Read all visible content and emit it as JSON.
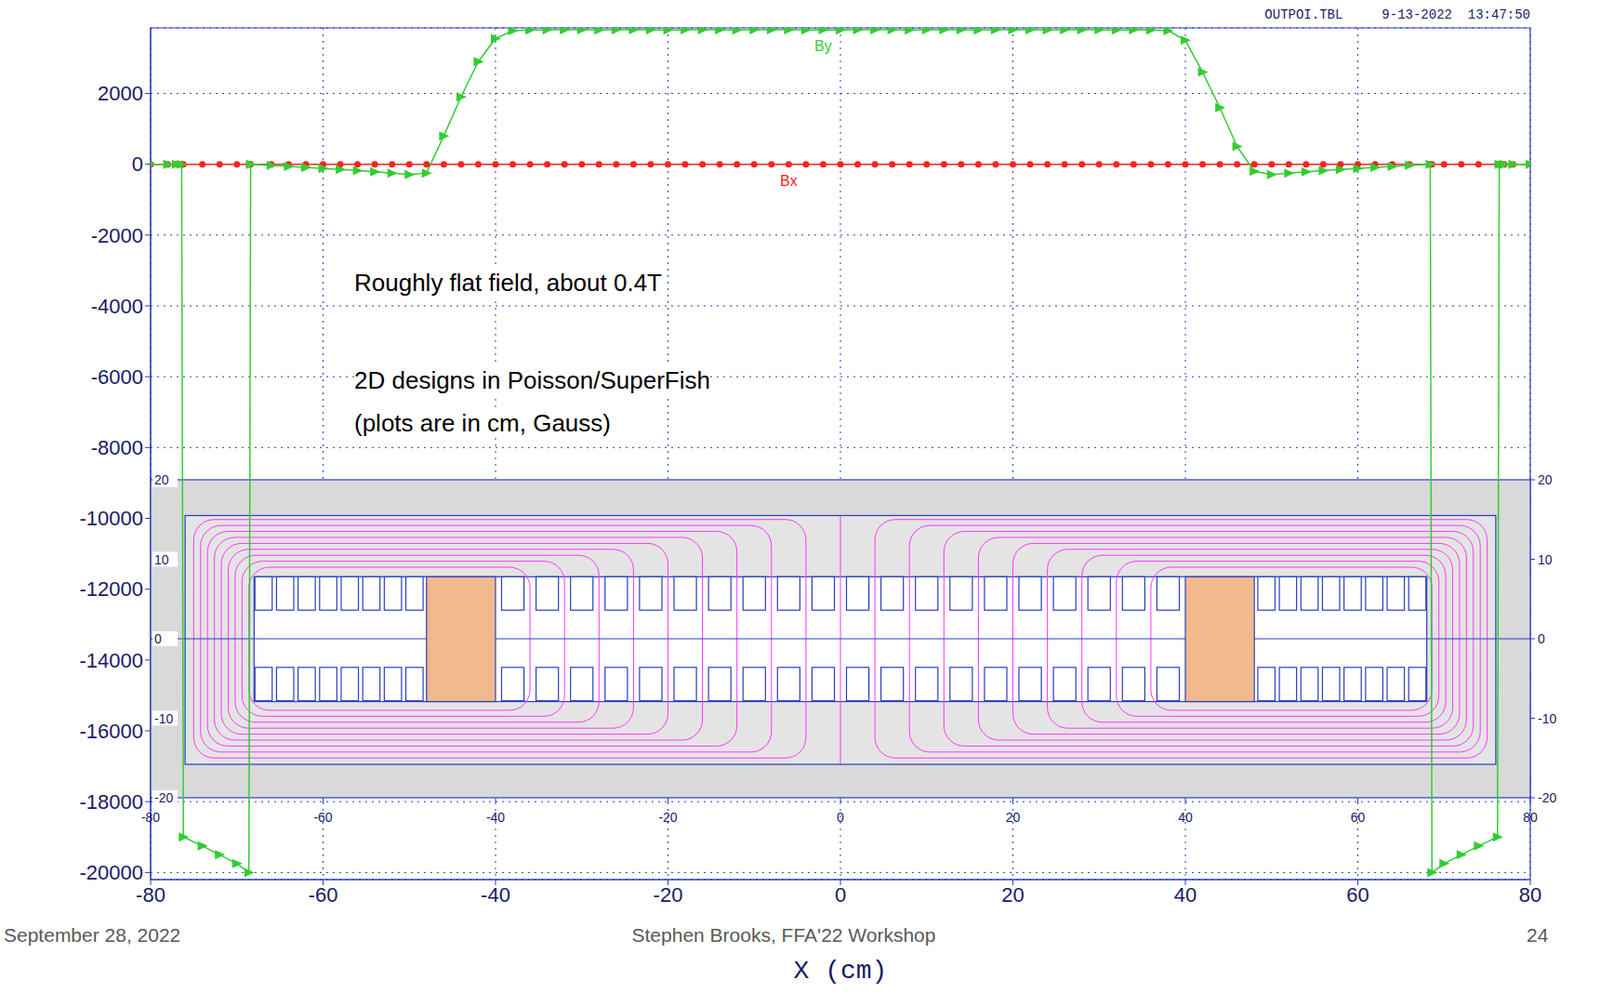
{
  "chart_data": [
    {
      "type": "line",
      "subtitle": "OUTPOI.TBL     9-13-2022  13:47:50",
      "x_label": "X (cm)",
      "annotations": [
        "Roughly flat field, about 0.4T",
        "2D designs in Poisson/SuperFish",
        "(plots are in cm, Gauss)"
      ],
      "x": [
        -80,
        -78,
        -77,
        -76.4,
        -76.2,
        -74,
        -72,
        -70,
        -68.6,
        -68.4,
        -66,
        -64,
        -62,
        -60,
        -58,
        -56,
        -54,
        -52,
        -50,
        -48,
        -46,
        -44,
        -42,
        -40,
        -38,
        -36,
        -34,
        -32,
        -30,
        -28,
        -26,
        -24,
        -22,
        -20,
        -18,
        -16,
        -14,
        -12,
        -10,
        -8,
        -6,
        -4,
        -2,
        0,
        2,
        4,
        6,
        8,
        10,
        12,
        14,
        16,
        18,
        20,
        22,
        24,
        26,
        28,
        30,
        32,
        34,
        36,
        38,
        40,
        42,
        44,
        46,
        48,
        50,
        52,
        54,
        56,
        58,
        60,
        62,
        64,
        66,
        68.4,
        68.6,
        70,
        72,
        74,
        76.2,
        76.4,
        77,
        78,
        80
      ],
      "series": [
        {
          "name": "By",
          "color": "#33cc33",
          "marker": "triangle",
          "values": [
            0,
            0,
            0,
            0,
            -19000,
            -19250,
            -19500,
            -19750,
            -20000,
            0,
            -30,
            -60,
            -90,
            -120,
            -150,
            -180,
            -210,
            -250,
            -290,
            -250,
            800,
            1900,
            2900,
            3550,
            3770,
            3790,
            3800,
            3795,
            3800,
            3790,
            3800,
            3795,
            3800,
            3790,
            3800,
            3795,
            3800,
            3790,
            3800,
            3795,
            3800,
            3790,
            3800,
            3790,
            3800,
            3795,
            3800,
            3790,
            3800,
            3795,
            3800,
            3790,
            3800,
            3795,
            3800,
            3790,
            3800,
            3795,
            3800,
            3790,
            3800,
            3790,
            3770,
            3500,
            2600,
            1600,
            500,
            -200,
            -290,
            -250,
            -210,
            -180,
            -150,
            -120,
            -90,
            -60,
            -30,
            0,
            -20000,
            -19750,
            -19500,
            -19250,
            -19000,
            0,
            0,
            0,
            0
          ]
        },
        {
          "name": "Bx",
          "color": "#ff2020",
          "marker": "circle",
          "values": [
            0,
            0,
            0,
            0,
            0,
            0,
            0,
            0,
            0,
            0,
            0,
            0,
            0,
            0,
            0,
            0,
            0,
            0,
            0,
            0,
            0,
            0,
            0,
            0,
            0,
            0,
            0,
            0,
            0,
            0,
            0,
            0,
            0,
            0,
            0,
            0,
            0,
            0,
            0,
            0,
            0,
            0,
            0,
            0,
            0,
            0,
            0,
            0,
            0,
            0,
            0,
            0,
            0,
            0,
            0,
            0,
            0,
            0,
            0,
            0,
            0,
            0,
            0,
            0,
            0,
            0,
            0,
            0,
            0,
            0,
            0,
            0,
            0,
            0,
            0,
            0,
            0,
            0,
            0,
            0,
            0,
            0,
            0,
            0,
            0,
            0,
            0
          ]
        }
      ],
      "xlim": [
        -80,
        80
      ],
      "xticks": [
        -80,
        -60,
        -40,
        -20,
        0,
        20,
        40,
        60,
        80
      ],
      "ylim": [
        -20200,
        3850
      ],
      "yticks": [
        -20000,
        -18000,
        -16000,
        -14000,
        -12000,
        -10000,
        -8000,
        -6000,
        -4000,
        -2000,
        0,
        2000
      ],
      "grid": true
    },
    {
      "type": "geometry",
      "xlim": [
        -80,
        80
      ],
      "ylim": [
        -20,
        20
      ],
      "xticks": [
        -80,
        -60,
        -40,
        -20,
        0,
        20,
        40,
        60,
        80
      ],
      "yticks": [
        -20,
        -10,
        0,
        10,
        20
      ],
      "boundaries": [
        [
          -80,
          80,
          -20,
          20
        ],
        [
          -76,
          76,
          -15.8,
          15.5
        ],
        [
          -68,
          68,
          -7.9,
          7.8
        ]
      ],
      "blocks": [
        [
          -48,
          -40,
          -7.9,
          7.8
        ],
        [
          40,
          48,
          -7.9,
          7.8
        ]
      ],
      "coil_rows": [
        [
          3.6,
          7.8
        ],
        [
          -7.8,
          -3.6
        ]
      ],
      "coils": [
        [
          -67.9,
          -65.9
        ],
        [
          -65.4,
          -63.4
        ],
        [
          -62.9,
          -60.9
        ],
        [
          -60.4,
          -58.4
        ],
        [
          -57.9,
          -55.9
        ],
        [
          -55.4,
          -53.4
        ],
        [
          -52.9,
          -50.9
        ],
        [
          -50.4,
          -48.4
        ],
        [
          -39.3,
          -36.7
        ],
        [
          -35.3,
          -32.7
        ],
        [
          -31.3,
          -28.7
        ],
        [
          -27.3,
          -24.7
        ],
        [
          -23.3,
          -20.7
        ],
        [
          -19.3,
          -16.7
        ],
        [
          -15.3,
          -12.7
        ],
        [
          -11.3,
          -8.7
        ],
        [
          -7.3,
          -4.7
        ],
        [
          -3.3,
          -0.7
        ],
        [
          0.7,
          3.3
        ],
        [
          4.7,
          7.3
        ],
        [
          8.7,
          11.3
        ],
        [
          12.7,
          15.3
        ],
        [
          16.7,
          19.3
        ],
        [
          20.7,
          23.3
        ],
        [
          24.7,
          27.3
        ],
        [
          28.7,
          31.3
        ],
        [
          32.7,
          35.3
        ],
        [
          36.7,
          39.3
        ],
        [
          48.4,
          50.4
        ],
        [
          50.9,
          52.9
        ],
        [
          53.4,
          55.4
        ],
        [
          55.9,
          57.9
        ],
        [
          58.4,
          60.4
        ],
        [
          60.9,
          62.9
        ],
        [
          63.4,
          65.4
        ],
        [
          65.9,
          67.9
        ]
      ]
    }
  ],
  "footer": {
    "date": "September 28, 2022",
    "author": "Stephen Brooks, FFA'22 Workshop",
    "page": 24
  }
}
